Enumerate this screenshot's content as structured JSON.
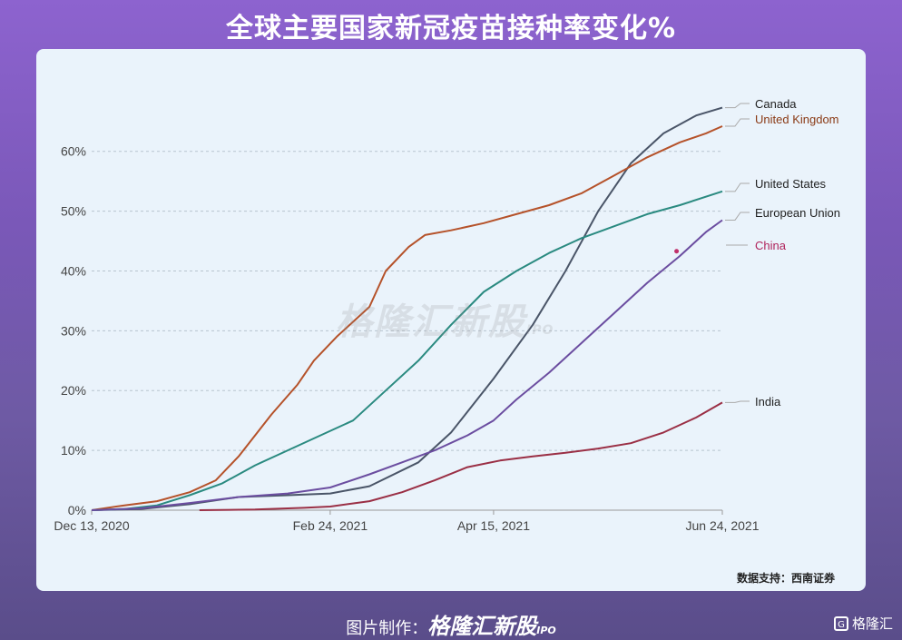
{
  "header": {
    "title": "全球主要国家新冠疫苗接种率变化%"
  },
  "watermark": {
    "text": "格隆汇新股",
    "sub": "IPO"
  },
  "source": "数据支持：西南证券",
  "footer": {
    "prefix": "图片制作：",
    "brand": "格隆汇新股",
    "sub": "IPO",
    "corner": "格隆汇"
  },
  "chart_data": {
    "type": "line",
    "title": "",
    "xlabel": "",
    "ylabel": "",
    "x_ticks": [
      "Dec 13, 2020",
      "Feb 24, 2021",
      "Apr 15, 2021",
      "Jun 24, 2021"
    ],
    "x_tick_days": [
      0,
      73,
      123,
      193
    ],
    "y_ticks": [
      "0%",
      "10%",
      "20%",
      "30%",
      "40%",
      "50%",
      "60%"
    ],
    "ylim": [
      0,
      68
    ],
    "xlim_days": [
      0,
      193
    ],
    "grid": "horizontal dashed",
    "legend": "labels at right end of lines",
    "series": [
      {
        "name": "Canada",
        "color": "#4a5568",
        "points": [
          [
            0,
            0
          ],
          [
            15,
            0.2
          ],
          [
            30,
            1.0
          ],
          [
            45,
            2.2
          ],
          [
            60,
            2.5
          ],
          [
            73,
            2.8
          ],
          [
            85,
            4.0
          ],
          [
            100,
            8.0
          ],
          [
            110,
            13.0
          ],
          [
            123,
            22.0
          ],
          [
            135,
            31.0
          ],
          [
            145,
            40.0
          ],
          [
            155,
            50.0
          ],
          [
            165,
            58.0
          ],
          [
            175,
            63.0
          ],
          [
            185,
            66.0
          ],
          [
            193,
            67.3
          ]
        ]
      },
      {
        "name": "United Kingdom",
        "color": "#b5522a",
        "points": [
          [
            0,
            0
          ],
          [
            10,
            0.8
          ],
          [
            20,
            1.5
          ],
          [
            30,
            3.0
          ],
          [
            38,
            5.0
          ],
          [
            45,
            9.0
          ],
          [
            55,
            16.0
          ],
          [
            63,
            21.0
          ],
          [
            68,
            25.0
          ],
          [
            75,
            29.0
          ],
          [
            85,
            34.0
          ],
          [
            90,
            40.0
          ],
          [
            97,
            44.0
          ],
          [
            102,
            46.0
          ],
          [
            110,
            46.8
          ],
          [
            120,
            48.0
          ],
          [
            130,
            49.5
          ],
          [
            140,
            51.0
          ],
          [
            150,
            53.0
          ],
          [
            160,
            56.0
          ],
          [
            170,
            59.0
          ],
          [
            180,
            61.5
          ],
          [
            188,
            63.0
          ],
          [
            193,
            64.2
          ]
        ]
      },
      {
        "name": "United States",
        "color": "#2a8a80",
        "points": [
          [
            0,
            0
          ],
          [
            10,
            0.2
          ],
          [
            20,
            0.8
          ],
          [
            30,
            2.5
          ],
          [
            40,
            4.5
          ],
          [
            50,
            7.5
          ],
          [
            60,
            10.0
          ],
          [
            70,
            12.5
          ],
          [
            80,
            15.0
          ],
          [
            90,
            20.0
          ],
          [
            100,
            25.0
          ],
          [
            110,
            31.0
          ],
          [
            120,
            36.5
          ],
          [
            130,
            40.0
          ],
          [
            140,
            43.0
          ],
          [
            150,
            45.5
          ],
          [
            160,
            47.5
          ],
          [
            170,
            49.5
          ],
          [
            180,
            51.0
          ],
          [
            193,
            53.3
          ]
        ]
      },
      {
        "name": "European Union",
        "color": "#6b4da0",
        "points": [
          [
            0,
            0
          ],
          [
            15,
            0.3
          ],
          [
            30,
            1.2
          ],
          [
            45,
            2.2
          ],
          [
            60,
            2.8
          ],
          [
            73,
            3.8
          ],
          [
            85,
            6.0
          ],
          [
            95,
            8.0
          ],
          [
            105,
            10.0
          ],
          [
            115,
            12.5
          ],
          [
            123,
            15.0
          ],
          [
            130,
            18.5
          ],
          [
            140,
            23.0
          ],
          [
            150,
            28.0
          ],
          [
            160,
            33.0
          ],
          [
            170,
            38.0
          ],
          [
            180,
            42.5
          ],
          [
            188,
            46.5
          ],
          [
            193,
            48.5
          ]
        ]
      },
      {
        "name": "China",
        "color": "#c0306a",
        "points": [
          [
            179,
            43.3
          ]
        ]
      },
      {
        "name": "India",
        "color": "#9a2f45",
        "points": [
          [
            33,
            0
          ],
          [
            50,
            0.1
          ],
          [
            65,
            0.4
          ],
          [
            73,
            0.6
          ],
          [
            85,
            1.5
          ],
          [
            95,
            3.0
          ],
          [
            105,
            5.0
          ],
          [
            115,
            7.2
          ],
          [
            125,
            8.3
          ],
          [
            135,
            9.0
          ],
          [
            145,
            9.6
          ],
          [
            155,
            10.3
          ],
          [
            165,
            11.2
          ],
          [
            175,
            13.0
          ],
          [
            185,
            15.5
          ],
          [
            193,
            18.0
          ]
        ]
      }
    ]
  }
}
